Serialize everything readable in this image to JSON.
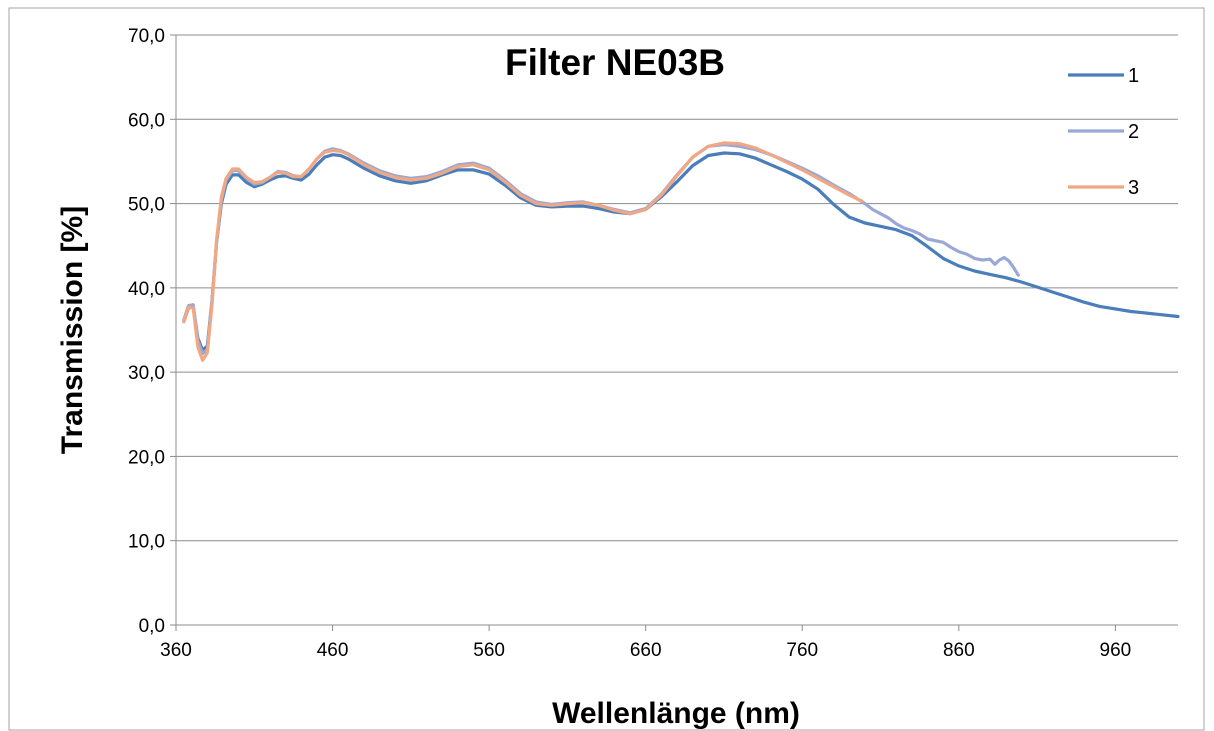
{
  "chart_data": {
    "type": "line",
    "title": "Filter NE03B",
    "xlabel": "Wellenlänge (nm)",
    "ylabel": "Transmission [%]",
    "xlim": [
      360,
      1000
    ],
    "ylim": [
      0,
      70
    ],
    "x_ticks": [
      360,
      460,
      560,
      660,
      760,
      860,
      960
    ],
    "x_tick_labels": [
      "360",
      "460",
      "560",
      "660",
      "760",
      "860",
      "960"
    ],
    "y_ticks": [
      0,
      10,
      20,
      30,
      40,
      50,
      60,
      70
    ],
    "y_tick_labels": [
      "0,0",
      "10,0",
      "20,0",
      "30,0",
      "40,0",
      "50,0",
      "60,0",
      "70,0"
    ],
    "grid": "horizontal",
    "legend_position": "top-right",
    "series": [
      {
        "name": "1",
        "color": "#4a7ebb",
        "x": [
          365,
          368,
          371,
          374,
          377,
          380,
          383,
          386,
          389,
          392,
          396,
          400,
          405,
          410,
          415,
          420,
          425,
          430,
          435,
          440,
          445,
          450,
          455,
          460,
          465,
          470,
          480,
          490,
          500,
          510,
          520,
          530,
          540,
          550,
          560,
          570,
          580,
          590,
          600,
          610,
          620,
          630,
          640,
          650,
          660,
          670,
          680,
          690,
          700,
          710,
          720,
          730,
          740,
          750,
          760,
          770,
          780,
          790,
          800,
          810,
          820,
          830,
          840,
          850,
          860,
          870,
          880,
          890,
          900,
          910,
          920,
          930,
          940,
          950,
          960,
          970,
          980,
          990,
          1000
        ],
        "values": [
          36.0,
          37.6,
          37.8,
          34.0,
          32.6,
          33.1,
          38.5,
          45.5,
          50.0,
          52.3,
          53.4,
          53.4,
          52.5,
          52.0,
          52.3,
          52.8,
          53.2,
          53.3,
          53.0,
          52.8,
          53.5,
          54.6,
          55.5,
          55.8,
          55.7,
          55.3,
          54.2,
          53.3,
          52.7,
          52.4,
          52.7,
          53.4,
          54.0,
          54.0,
          53.5,
          52.2,
          50.7,
          49.8,
          49.6,
          49.7,
          49.7,
          49.4,
          49.0,
          48.8,
          49.3,
          50.8,
          52.6,
          54.5,
          55.7,
          56.0,
          55.9,
          55.4,
          54.6,
          53.8,
          52.9,
          51.7,
          49.9,
          48.4,
          47.7,
          47.3,
          46.9,
          46.2,
          44.9,
          43.5,
          42.6,
          42.0,
          41.6,
          41.2,
          40.7,
          40.1,
          39.5,
          38.9,
          38.3,
          37.8,
          37.5,
          37.2,
          37.0,
          36.8,
          36.6
        ]
      },
      {
        "name": "2",
        "color": "#9aa8d6",
        "x": [
          365,
          368,
          371,
          374,
          377,
          380,
          383,
          386,
          389,
          392,
          396,
          400,
          405,
          410,
          415,
          420,
          425,
          430,
          435,
          440,
          445,
          450,
          455,
          460,
          465,
          470,
          480,
          490,
          500,
          510,
          520,
          530,
          540,
          550,
          560,
          570,
          580,
          590,
          600,
          610,
          620,
          630,
          640,
          650,
          660,
          670,
          680,
          690,
          700,
          710,
          720,
          730,
          740,
          750,
          760,
          770,
          780,
          790,
          800,
          805,
          810,
          815,
          820,
          825,
          830,
          835,
          840,
          845,
          850,
          855,
          860,
          865,
          870,
          875,
          880,
          883,
          886,
          889,
          892,
          895,
          898
        ],
        "values": [
          36.2,
          37.9,
          38.0,
          33.7,
          32.2,
          32.7,
          38.3,
          45.7,
          50.4,
          52.8,
          53.9,
          53.9,
          53.0,
          52.3,
          52.5,
          53.1,
          53.8,
          53.7,
          53.3,
          53.2,
          54.1,
          55.3,
          56.2,
          56.5,
          56.3,
          55.9,
          54.8,
          53.9,
          53.3,
          53.0,
          53.2,
          53.8,
          54.6,
          54.8,
          54.2,
          52.8,
          51.2,
          50.2,
          49.9,
          50.1,
          50.2,
          49.8,
          49.3,
          48.9,
          49.4,
          51.1,
          53.4,
          55.5,
          56.8,
          57.0,
          56.8,
          56.4,
          55.8,
          55.0,
          54.2,
          53.3,
          52.2,
          51.2,
          50.0,
          49.3,
          48.8,
          48.3,
          47.6,
          47.1,
          46.8,
          46.4,
          45.8,
          45.6,
          45.4,
          44.8,
          44.3,
          44.0,
          43.5,
          43.3,
          43.4,
          42.8,
          43.3,
          43.6,
          43.2,
          42.4,
          41.5
        ]
      },
      {
        "name": "3",
        "color": "#f0a884",
        "x": [
          365,
          368,
          371,
          374,
          377,
          380,
          383,
          386,
          389,
          392,
          396,
          400,
          405,
          410,
          415,
          420,
          425,
          430,
          435,
          440,
          445,
          450,
          455,
          460,
          465,
          470,
          480,
          490,
          500,
          510,
          520,
          530,
          540,
          550,
          560,
          570,
          580,
          590,
          600,
          610,
          620,
          630,
          640,
          650,
          660,
          670,
          680,
          690,
          700,
          710,
          720,
          730,
          740,
          750,
          760,
          770,
          780,
          790,
          798
        ],
        "values": [
          36.0,
          37.7,
          37.6,
          33.0,
          31.4,
          32.3,
          38.0,
          45.8,
          50.8,
          53.0,
          54.1,
          54.1,
          53.1,
          52.5,
          52.6,
          53.1,
          53.7,
          53.6,
          53.2,
          53.2,
          54.1,
          55.3,
          56.1,
          56.3,
          56.2,
          55.8,
          54.6,
          53.7,
          53.1,
          52.8,
          53.0,
          53.6,
          54.4,
          54.6,
          54.0,
          52.6,
          51.0,
          50.0,
          49.8,
          50.0,
          50.1,
          49.8,
          49.2,
          48.8,
          49.3,
          51.0,
          53.3,
          55.5,
          56.8,
          57.2,
          57.1,
          56.6,
          55.8,
          54.9,
          54.0,
          53.0,
          52.0,
          51.0,
          50.3
        ]
      }
    ]
  }
}
